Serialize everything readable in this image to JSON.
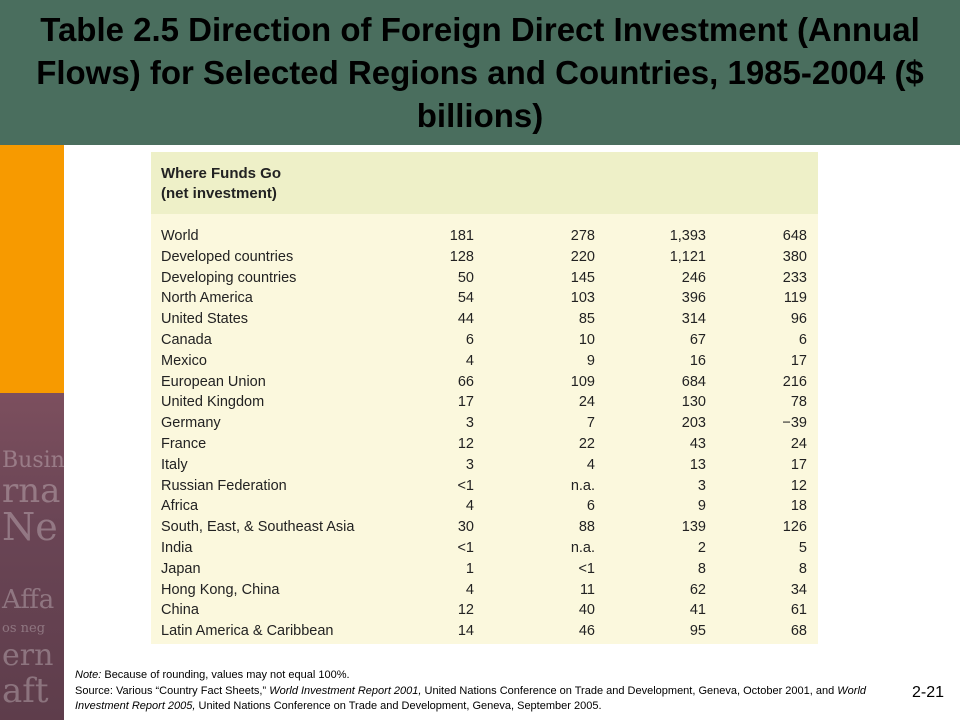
{
  "slide": {
    "title": "Table 2.5 Direction of Foreign Direct Investment (Annual Flows) for Selected Regions and Countries, 1985-2004 ($ billions)",
    "number": "2-21"
  },
  "side_collage_text": [
    "Busin",
    "rna",
    "Ne",
    "Affa",
    "os neg",
    "ern",
    "aft"
  ],
  "table": {
    "header_line1": "Where Funds Go",
    "header_line2": "(net investment)",
    "rows": [
      {
        "label": "World",
        "v1": "181",
        "v2": "278",
        "v3": "1,393",
        "v4": "648"
      },
      {
        "label": "Developed countries",
        "v1": "128",
        "v2": "220",
        "v3": "1,121",
        "v4": "380"
      },
      {
        "label": "Developing countries",
        "v1": "50",
        "v2": "145",
        "v3": "246",
        "v4": "233"
      },
      {
        "label": "North America",
        "v1": "54",
        "v2": "103",
        "v3": "396",
        "v4": "119"
      },
      {
        "label": "United States",
        "v1": "44",
        "v2": "85",
        "v3": "314",
        "v4": "96"
      },
      {
        "label": "Canada",
        "v1": "6",
        "v2": "10",
        "v3": "67",
        "v4": "6"
      },
      {
        "label": "Mexico",
        "v1": "4",
        "v2": "9",
        "v3": "16",
        "v4": "17"
      },
      {
        "label": "European Union",
        "v1": "66",
        "v2": "109",
        "v3": "684",
        "v4": "216"
      },
      {
        "label": "United Kingdom",
        "v1": "17",
        "v2": "24",
        "v3": "130",
        "v4": "78"
      },
      {
        "label": "Germany",
        "v1": "3",
        "v2": "7",
        "v3": "203",
        "v4": "−39"
      },
      {
        "label": "France",
        "v1": "12",
        "v2": "22",
        "v3": "43",
        "v4": "24"
      },
      {
        "label": "Italy",
        "v1": "3",
        "v2": "4",
        "v3": "13",
        "v4": "17"
      },
      {
        "label": "Russian Federation",
        "v1": "<1",
        "v2": "n.a.",
        "v3": "3",
        "v4": "12"
      },
      {
        "label": "Africa",
        "v1": "4",
        "v2": "6",
        "v3": "9",
        "v4": "18"
      },
      {
        "label": "South, East, & Southeast Asia",
        "v1": "30",
        "v2": "88",
        "v3": "139",
        "v4": "126"
      },
      {
        "label": "India",
        "v1": "<1",
        "v2": "n.a.",
        "v3": "2",
        "v4": "5"
      },
      {
        "label": "Japan",
        "v1": "1",
        "v2": "<1",
        "v3": "8",
        "v4": "8"
      },
      {
        "label": "Hong Kong, China",
        "v1": "4",
        "v2": "11",
        "v3": "62",
        "v4": "34"
      },
      {
        "label": "China",
        "v1": "12",
        "v2": "40",
        "v3": "41",
        "v4": "61"
      },
      {
        "label": "Latin America & Caribbean",
        "v1": "14",
        "v2": "46",
        "v3": "95",
        "v4": "68"
      }
    ]
  },
  "notes": {
    "note_label": "Note:",
    "note_text": " Because of rounding, values may not equal 100%.",
    "source_a": "Source: Various “Country Fact Sheets,” ",
    "source_b": "World Investment Report 2001,",
    "source_c": " United Nations Conference on Trade and Development, Geneva, October 2001, and ",
    "source_d": "World Investment Report 2005,",
    "source_e": " United Nations Conference on Trade and Development, Geneva, September 2005."
  }
}
